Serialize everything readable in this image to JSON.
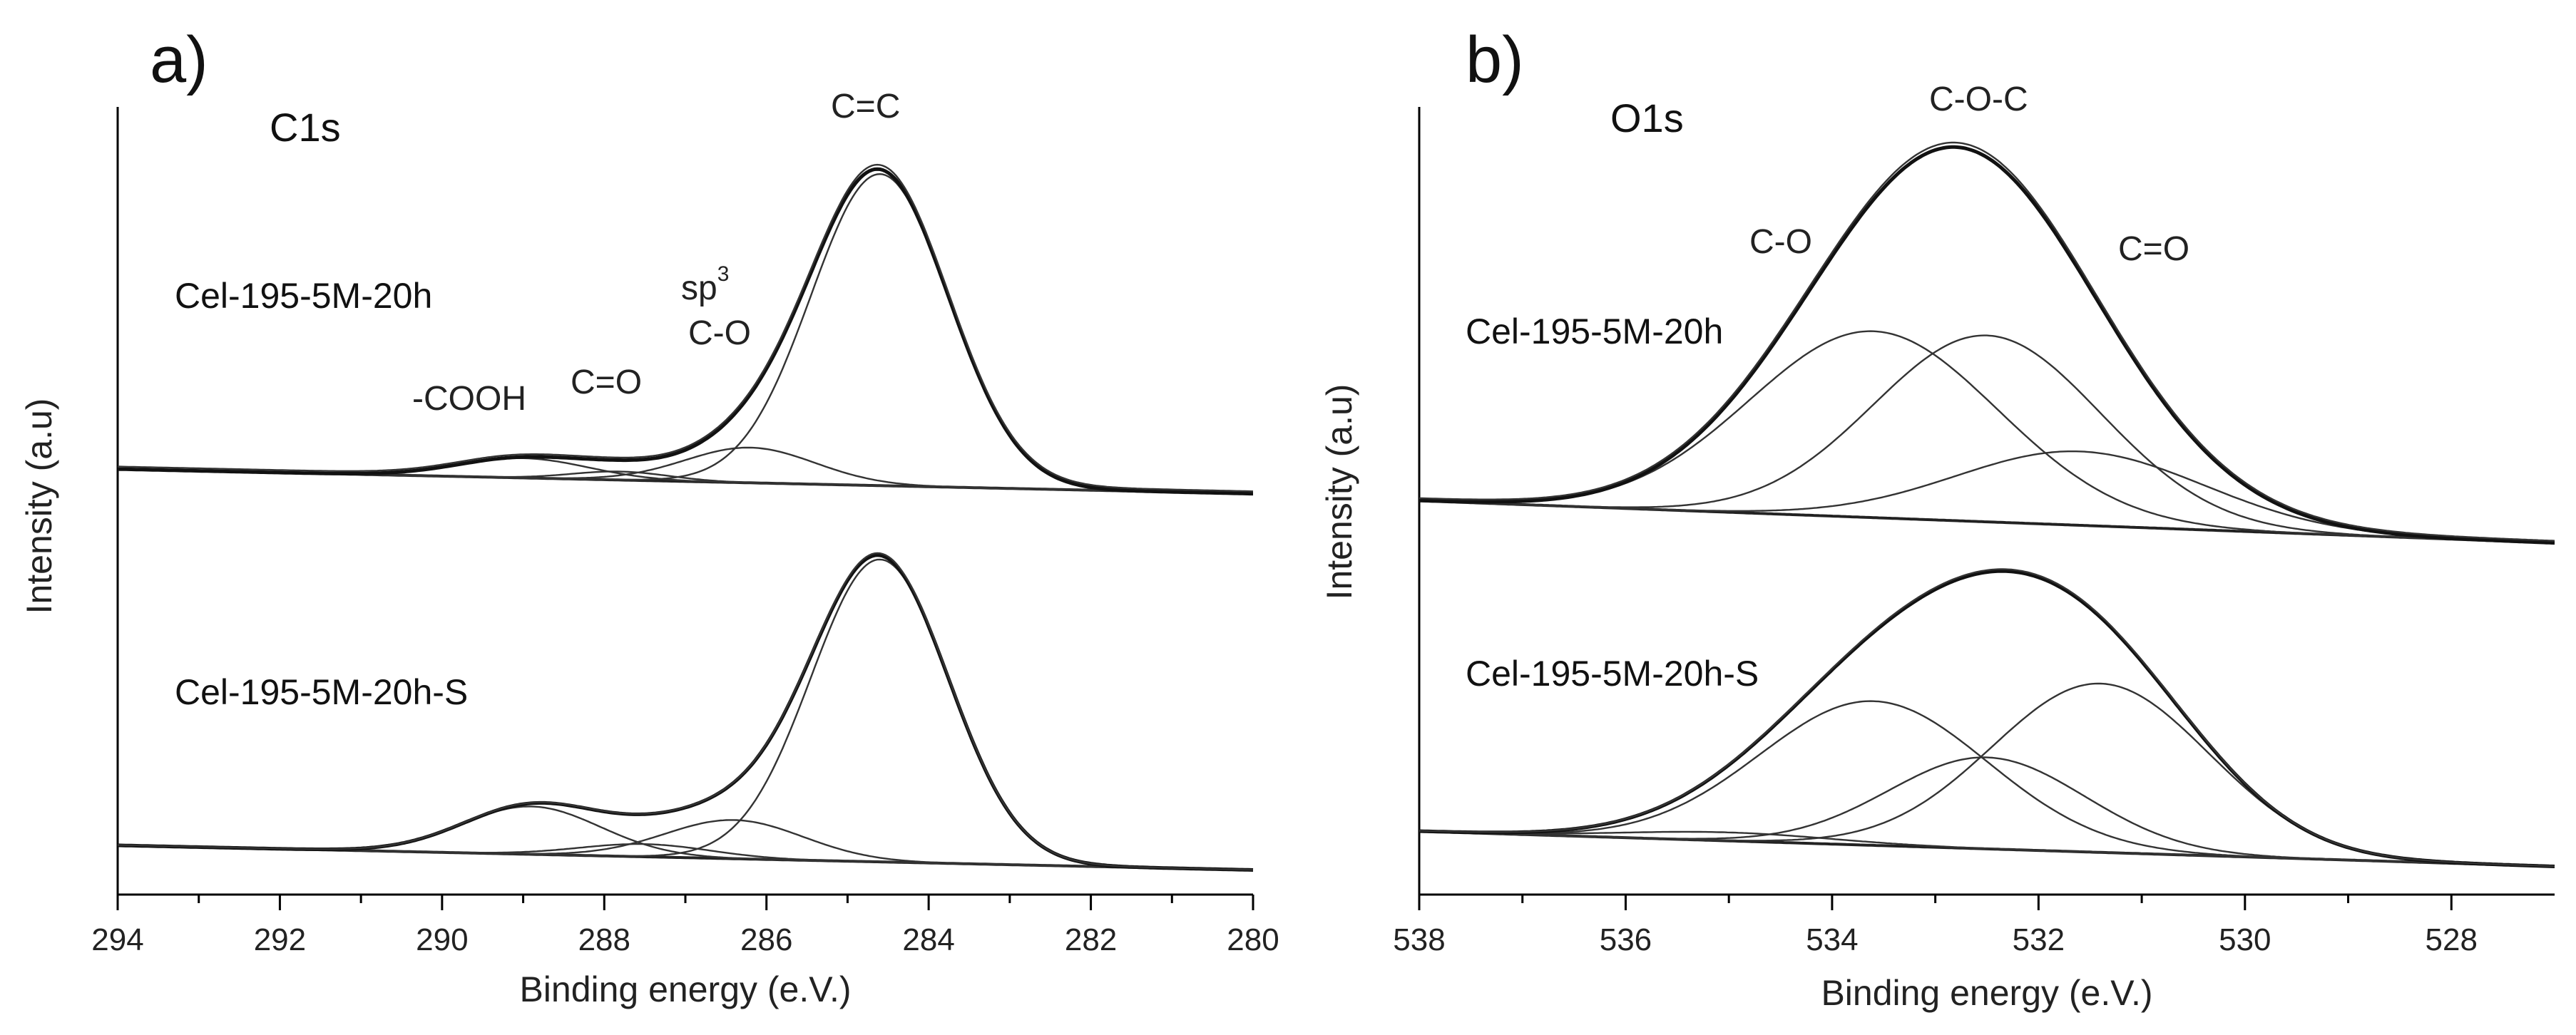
{
  "chart_data": [
    {
      "type": "line",
      "panel_label": "a)",
      "title": "C1s",
      "xlabel": "Binding energy (e.V.)",
      "ylabel": "Intensity (a.u)",
      "xlim": [
        294,
        280
      ],
      "xticks": [
        294,
        292,
        290,
        288,
        286,
        284,
        282,
        280
      ],
      "ylim": [
        0,
        1.12
      ],
      "annotations": [
        {
          "text": "-COOH",
          "x": 288.9
        },
        {
          "text": "C=O",
          "x": 287.6
        },
        {
          "text": "sp",
          "sup": "3",
          "x": 286.4
        },
        {
          "text": "C-O",
          "x": 286.4
        },
        {
          "text": "C=C",
          "x": 284.6
        }
      ],
      "spectra": [
        {
          "name": "Cel-195-5M-20h",
          "baseline": {
            "left": 0.605,
            "right": 0.57
          },
          "peaks": [
            {
              "label": "C=C",
              "center": 284.6,
              "height": 0.443,
              "width": 0.85
            },
            {
              "label": "C-O",
              "center": 286.2,
              "height": 0.05,
              "width": 0.8
            },
            {
              "label": "C=O",
              "center": 287.8,
              "height": 0.012,
              "width": 0.6
            },
            {
              "label": "-COOH",
              "center": 289.0,
              "height": 0.028,
              "width": 0.8
            }
          ]
        },
        {
          "name": "Cel-195-5M-20h-S",
          "baseline": {
            "left": 0.07,
            "right": 0.035
          },
          "peaks": [
            {
              "label": "C=C",
              "center": 284.6,
              "height": 0.43,
              "width": 0.85
            },
            {
              "label": "C-O",
              "center": 286.4,
              "height": 0.055,
              "width": 0.85
            },
            {
              "label": "C=O",
              "center": 287.5,
              "height": 0.018,
              "width": 0.8
            },
            {
              "label": "-COOH",
              "center": 288.9,
              "height": 0.068,
              "width": 0.85
            }
          ]
        }
      ]
    },
    {
      "type": "line",
      "panel_label": "b)",
      "title": "O1s",
      "xlabel": "Binding energy (e.V.)",
      "ylabel": "Intensity (a.u)",
      "xlim": [
        538,
        527
      ],
      "xticks": [
        538,
        536,
        534,
        532,
        530,
        528
      ],
      "ylim": [
        0,
        1.12
      ],
      "annotations": [
        {
          "text": "C-O-C",
          "x": 532.7
        },
        {
          "text": "C-O",
          "x": 534.8
        },
        {
          "text": "C=O",
          "x": 530.5
        }
      ],
      "spectra": [
        {
          "name": "Cel-195-5M-20h",
          "baseline": {
            "left": 0.56,
            "right": 0.5
          },
          "peaks": [
            {
              "label": "C-O",
              "center": 533.6,
              "height": 0.265,
              "width": 1.2
            },
            {
              "label": "C-O-C",
              "center": 532.5,
              "height": 0.265,
              "width": 1.1
            },
            {
              "label": "C=O",
              "center": 531.6,
              "height": 0.105,
              "width": 1.2
            }
          ]
        },
        {
          "name": "Cel-195-5M-20h-S",
          "baseline": {
            "left": 0.09,
            "right": 0.04
          },
          "peaks": [
            {
              "label": "C-O",
              "center": 533.6,
              "height": 0.205,
              "width": 1.1
            },
            {
              "label": "C-O-C",
              "center": 532.5,
              "height": 0.13,
              "width": 0.95
            },
            {
              "label": "C=O",
              "center": 531.4,
              "height": 0.24,
              "width": 1.05
            },
            {
              "label": "",
              "center": 535.0,
              "height": 0.012,
              "width": 1.0
            }
          ]
        }
      ]
    }
  ]
}
